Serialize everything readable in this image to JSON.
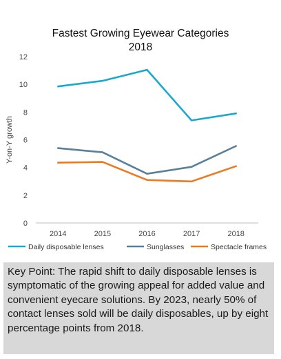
{
  "chart_data": {
    "type": "line",
    "title": [
      "Fastest Growing Eyewear Categories",
      "2018"
    ],
    "xlabel": "",
    "ylabel": "Y-on-Y growth",
    "categories": [
      "2014",
      "2015",
      "2016",
      "2017",
      "2018"
    ],
    "ylim": [
      0,
      12
    ],
    "yticks": [
      0,
      2,
      4,
      6,
      8,
      10,
      12
    ],
    "grid": false,
    "legend_position": "bottom",
    "series": [
      {
        "name": "Daily disposable lenses",
        "values": [
          9.85,
          10.25,
          11.05,
          7.4,
          7.9
        ],
        "color": "#1aa8d0"
      },
      {
        "name": "Sunglasses",
        "values": [
          5.4,
          5.1,
          3.55,
          4.05,
          5.55
        ],
        "color": "#5a7f99"
      },
      {
        "name": "Spectacle frames",
        "values": [
          4.35,
          4.4,
          3.1,
          3.0,
          4.1
        ],
        "color": "#ec7a22"
      }
    ]
  },
  "key_point": {
    "label": "Key Point:",
    "text": " The rapid shift to daily disposable lenses is symptomatic of the growing appeal for added value and convenient eyecare solutions. By 2023, nearly 50% of contact lenses sold will be daily disposables, up by eight percentage points from 2018."
  }
}
